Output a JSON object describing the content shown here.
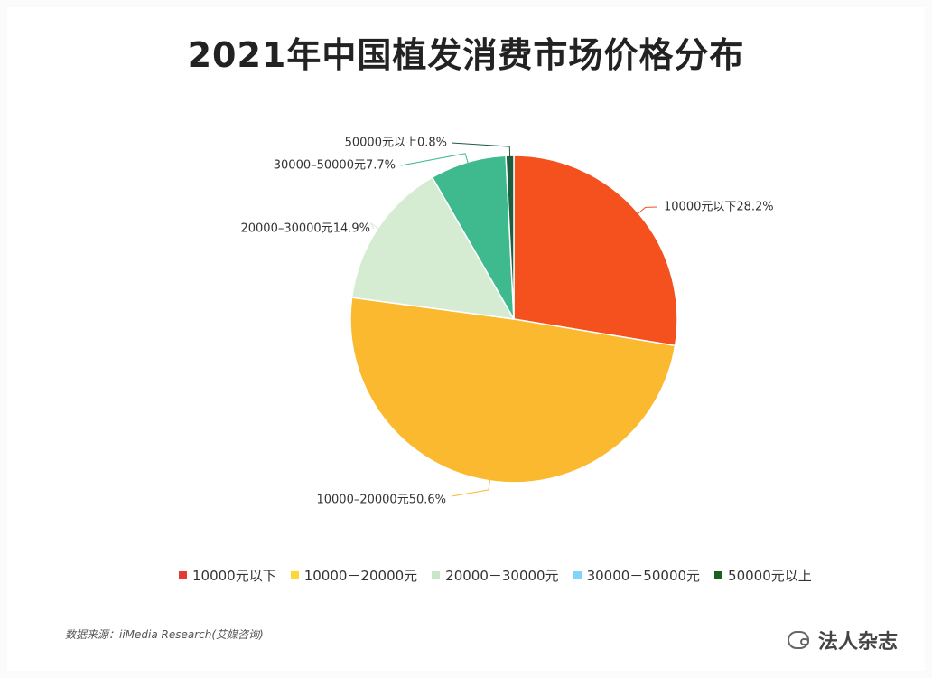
{
  "chart_data": {
    "type": "pie",
    "title": "2021年中国植发消费市场价格分布",
    "slices": [
      {
        "name": "10000元以下",
        "value": 28.2,
        "label": "10000元以下28.2%",
        "color": "#f4511e"
      },
      {
        "name": "10000－20000元",
        "value": 50.6,
        "label": "10000–20000元50.6%",
        "color": "#fbb930"
      },
      {
        "name": "20000－30000元",
        "value": 14.9,
        "label": "20000–30000元14.9%",
        "color": "#d6ecd2"
      },
      {
        "name": "30000－50000元",
        "value": 7.7,
        "label": "30000–50000元7.7%",
        "color": "#3fb98e"
      },
      {
        "name": "50000元以上",
        "value": 0.8,
        "label": "50000元以上0.8%",
        "color": "#1d5e3f"
      }
    ],
    "legend": {
      "position": "bottom",
      "items": [
        {
          "label": "10000元以下",
          "color": "#e53935"
        },
        {
          "label": "10000－20000元",
          "color": "#fdd835"
        },
        {
          "label": "20000－30000元",
          "color": "#c8e6c9"
        },
        {
          "label": "30000－50000元",
          "color": "#81d4fa"
        },
        {
          "label": "50000元以上",
          "color": "#1b5e20"
        }
      ]
    }
  },
  "source_text": "数据来源：iiMedia Research(艾媒咨询)",
  "watermark": "法人杂志"
}
